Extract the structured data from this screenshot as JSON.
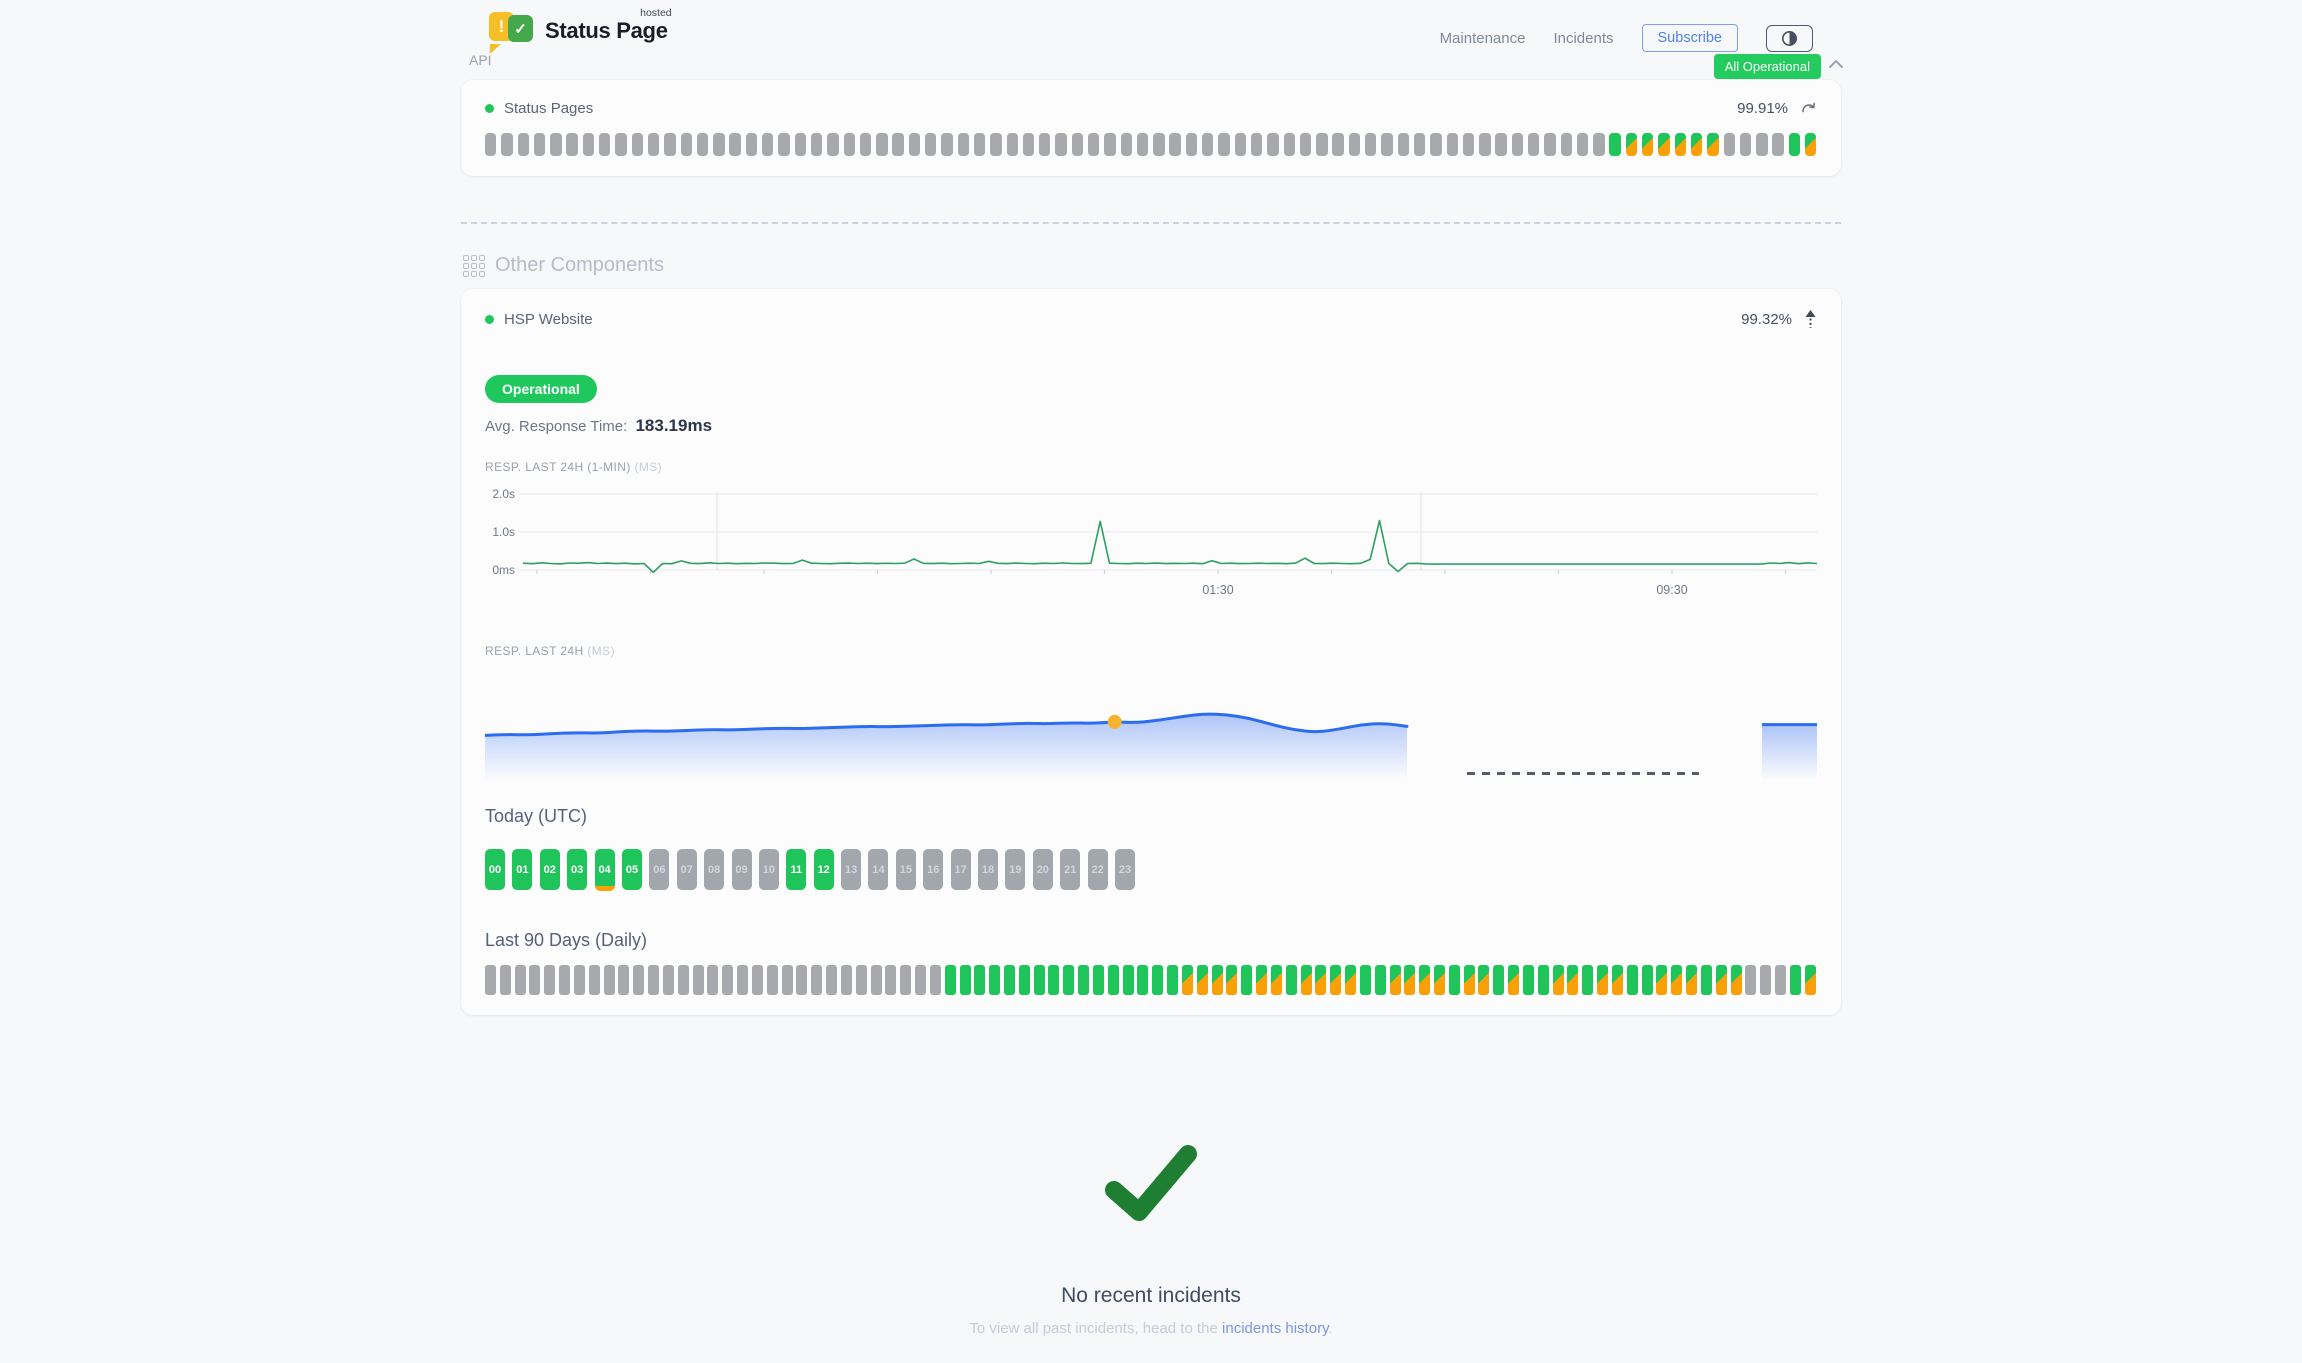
{
  "header": {
    "brand": {
      "name": "Status Page",
      "superscript": "hosted",
      "icon_exclaim": "!",
      "icon_check": "✓"
    },
    "nav": [
      {
        "label": "Maintenance"
      },
      {
        "label": "Incidents"
      }
    ],
    "subscribe_label": "Subscribe",
    "status_badge": "All Operational"
  },
  "api": {
    "title": "API",
    "component": {
      "name": "Status Pages",
      "uptime": "99.91%"
    },
    "bars": "xxxxxxxxxxxxxxxxxxxxxxxxxxxxxxxxxxxxxxxxxxxxxxxxxxxxxxxxxxxxxxxxxxxxxgooooooxxxxgo"
  },
  "other": {
    "title": "Other Components",
    "website": {
      "name": "HSP Website",
      "uptime": "99.32%",
      "status_badge": "Operational",
      "avg_response_label": "Avg. Response Time:",
      "avg_response_value": "183.19ms"
    },
    "chart_1min": {
      "title": "RESP. LAST 24H (1-MIN)",
      "unit": "(MS)",
      "type": "line",
      "y_ticks": [
        "2.0s",
        "1.0s",
        "0ms"
      ],
      "x_tick_labels": [
        "01:30",
        "09:30"
      ],
      "values_ms": [
        180,
        165,
        190,
        170,
        160,
        185,
        175,
        195,
        170,
        182,
        168,
        178,
        160,
        172,
        -60,
        170,
        165,
        240,
        175,
        168,
        190,
        172,
        180,
        165,
        175,
        170,
        185,
        178,
        168,
        172,
        260,
        180,
        170,
        165,
        175,
        182,
        170,
        178,
        168,
        175,
        172,
        180,
        290,
        175,
        168,
        178,
        165,
        172,
        180,
        170,
        230,
        175,
        168,
        182,
        172,
        165,
        178,
        170,
        185,
        172,
        168,
        175,
        1280,
        180,
        170,
        165,
        178,
        172,
        182,
        168,
        175,
        170,
        180,
        165,
        245,
        172,
        178,
        168,
        172,
        180,
        170,
        175,
        165,
        182,
        310,
        172,
        168,
        178,
        170,
        165,
        175,
        280,
        1300,
        172,
        -40,
        168,
        175,
        160,
        155,
        155,
        155,
        155,
        155,
        155,
        155,
        155,
        155,
        155,
        155,
        155,
        155,
        155,
        155,
        155,
        155,
        155,
        155,
        155,
        155,
        155,
        155,
        155,
        155,
        155,
        155,
        155,
        155,
        155,
        155,
        155,
        155,
        155,
        155,
        155,
        185,
        170,
        195,
        165,
        188,
        172
      ]
    },
    "chart_daily": {
      "title": "RESP. LAST 24H",
      "unit": "(MS)",
      "type": "area",
      "values_ms": [
        148,
        150,
        149,
        152,
        154,
        153,
        156,
        158,
        157,
        159,
        161,
        160,
        162,
        164,
        163,
        165,
        166,
        168,
        167,
        169,
        170,
        172,
        171,
        173,
        175,
        174,
        176,
        175,
        178,
        176,
        182,
        190,
        196,
        194,
        186,
        172,
        160,
        155,
        162,
        172,
        175,
        168
      ],
      "marker_index": 28,
      "tail_value_ms": 172
    },
    "today": {
      "title": "Today (UTC)",
      "hours": [
        {
          "label": "00",
          "state": "up"
        },
        {
          "label": "01",
          "state": "up"
        },
        {
          "label": "02",
          "state": "up"
        },
        {
          "label": "03",
          "state": "up"
        },
        {
          "label": "04",
          "state": "up",
          "marker": true
        },
        {
          "label": "05",
          "state": "up"
        },
        {
          "label": "06",
          "state": "none"
        },
        {
          "label": "07",
          "state": "none"
        },
        {
          "label": "08",
          "state": "none"
        },
        {
          "label": "09",
          "state": "none"
        },
        {
          "label": "10",
          "state": "none"
        },
        {
          "label": "11",
          "state": "up"
        },
        {
          "label": "12",
          "state": "up"
        },
        {
          "label": "13",
          "state": "none"
        },
        {
          "label": "14",
          "state": "none"
        },
        {
          "label": "15",
          "state": "none"
        },
        {
          "label": "16",
          "state": "none"
        },
        {
          "label": "17",
          "state": "none"
        },
        {
          "label": "18",
          "state": "none"
        },
        {
          "label": "19",
          "state": "none"
        },
        {
          "label": "20",
          "state": "none"
        },
        {
          "label": "21",
          "state": "none"
        },
        {
          "label": "22",
          "state": "none"
        },
        {
          "label": "23",
          "state": "none"
        }
      ]
    },
    "last90": {
      "title": "Last 90 Days (Daily)",
      "bars": "xxxxxxxxxxxxxxxxxxxxxxxxxxxxxxxggggggggggggggggoooogoogooooggoooogoogoggoogooggooogooxxxgo"
    }
  },
  "incidents": {
    "title": "No recent incidents",
    "subtitle_prefix": "To view all past incidents, head to the ",
    "subtitle_link": "incidents history",
    "subtitle_suffix": "."
  },
  "colors": {
    "green": "#1fc55b",
    "orange": "#f9a009",
    "gray_bar": "#a7a9ad",
    "chart_green": "#2f9e63",
    "chart_blue": "#2c6cf0",
    "marker_yellow": "#f6b32b",
    "check_green": "#1e7e32",
    "link_blue": "#7b97e4"
  }
}
